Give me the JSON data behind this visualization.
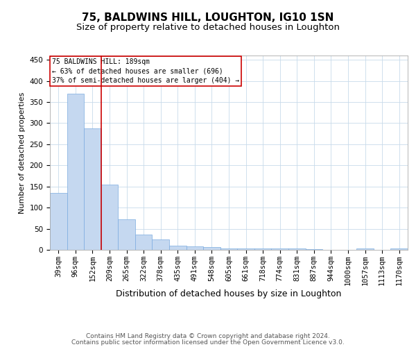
{
  "title1": "75, BALDWINS HILL, LOUGHTON, IG10 1SN",
  "title2": "Size of property relative to detached houses in Loughton",
  "xlabel": "Distribution of detached houses by size in Loughton",
  "ylabel": "Number of detached properties",
  "categories": [
    "39sqm",
    "96sqm",
    "152sqm",
    "209sqm",
    "265sqm",
    "322sqm",
    "378sqm",
    "435sqm",
    "491sqm",
    "548sqm",
    "605sqm",
    "661sqm",
    "718sqm",
    "774sqm",
    "831sqm",
    "887sqm",
    "944sqm",
    "1000sqm",
    "1057sqm",
    "1113sqm",
    "1170sqm"
  ],
  "values": [
    135,
    370,
    288,
    155,
    72,
    36,
    25,
    10,
    8,
    7,
    4,
    4,
    4,
    4,
    4,
    2,
    0,
    0,
    3,
    0,
    3
  ],
  "bar_color": "#c5d8f0",
  "bar_edge_color": "#7aabe0",
  "vline_x": 2.5,
  "vline_color": "#cc0000",
  "annotation_text": "75 BALDWINS HILL: 189sqm\n← 63% of detached houses are smaller (696)\n37% of semi-detached houses are larger (404) →",
  "annotation_box_color": "#ffffff",
  "annotation_box_edge": "#cc0000",
  "ylim": [
    0,
    460
  ],
  "yticks": [
    0,
    50,
    100,
    150,
    200,
    250,
    300,
    350,
    400,
    450
  ],
  "footer1": "Contains HM Land Registry data © Crown copyright and database right 2024.",
  "footer2": "Contains public sector information licensed under the Open Government Licence v3.0.",
  "bg_color": "#ffffff",
  "grid_color": "#c8daea",
  "title1_fontsize": 11,
  "title2_fontsize": 9.5,
  "xlabel_fontsize": 9,
  "ylabel_fontsize": 8,
  "tick_fontsize": 7.5,
  "footer_fontsize": 6.5
}
